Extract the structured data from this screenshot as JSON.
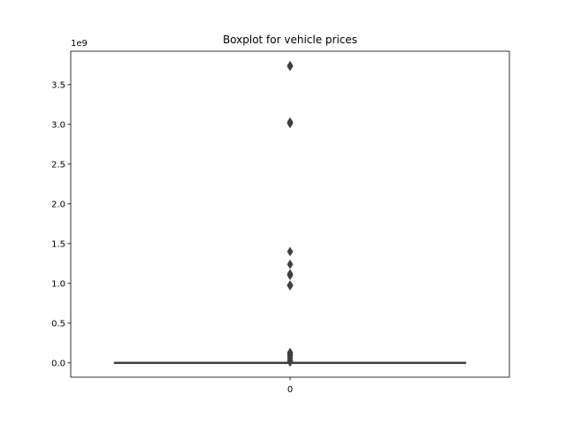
{
  "chart_data": {
    "type": "box",
    "title": "Boxplot for vehicle prices",
    "xlabel": "",
    "ylabel": "",
    "y_offset_label": "1e9",
    "y_scale": 1000000000,
    "ylim": [
      -0.18,
      3.92
    ],
    "y_ticks": [
      0.0,
      0.5,
      1.0,
      1.5,
      2.0,
      2.5,
      3.0,
      3.5
    ],
    "y_tick_labels": [
      "0.0",
      "0.5",
      "1.0",
      "1.5",
      "2.0",
      "2.5",
      "3.0",
      "3.5"
    ],
    "categories": [
      "0"
    ],
    "grid": false,
    "box": {
      "whisker_low": 0.0,
      "q1": 0.0,
      "median": 0.0,
      "q3": 0.0,
      "whisker_high": 0.005
    },
    "outliers": [
      3.74,
      3.73,
      3.03,
      3.01,
      1.4,
      1.24,
      1.12,
      1.1,
      0.98,
      0.97,
      0.13,
      0.11,
      0.09,
      0.06,
      0.03,
      0.01
    ],
    "colors": {
      "box_line": "#3f3f3f",
      "box_fill": "#3274a1",
      "outlier_fill": "#3f3f3f",
      "axis": "#000000"
    }
  }
}
